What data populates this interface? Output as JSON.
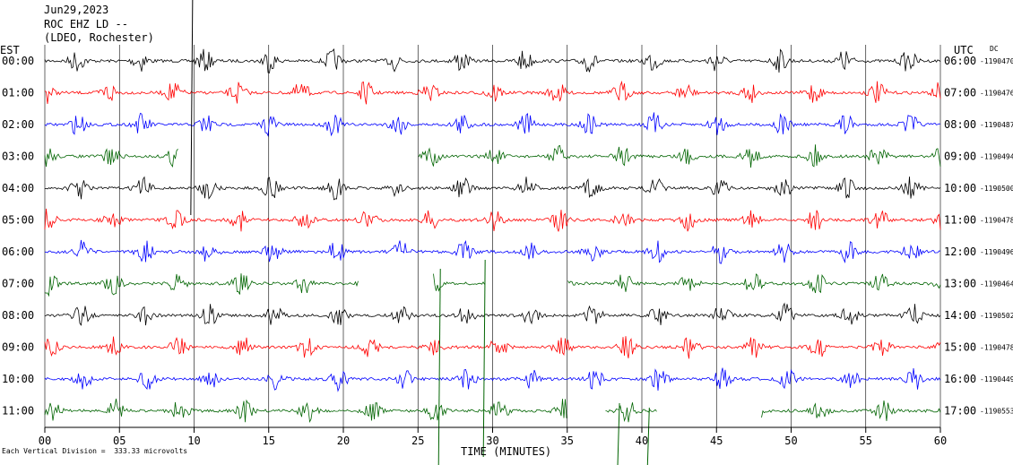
{
  "header": {
    "date": "Jun29,2023",
    "station": "ROC EHZ LD --",
    "network": "(LDEO, Rochester)"
  },
  "left_zone": "EST",
  "right_zone": "UTC",
  "dc_label": "DC",
  "footer_text": "Each Vertical Division =  333.33 microvolts",
  "colors": {
    "black": "#000000",
    "red": "#ff0000",
    "blue": "#0000ff",
    "green": "#006400"
  },
  "chart_data": {
    "type": "line",
    "title": "",
    "xlabel": "TIME (MINUTES)",
    "xlim": [
      0,
      60
    ],
    "x_ticks": [
      "00",
      "05",
      "10",
      "15",
      "20",
      "25",
      "30",
      "35",
      "40",
      "45",
      "50",
      "55",
      "60"
    ],
    "grid": "vertical lines every 5 minutes",
    "series": [
      {
        "est": "00:00",
        "utc": "06:00",
        "dc": "-1190470",
        "color": "black",
        "gaps": []
      },
      {
        "est": "01:00",
        "utc": "07:00",
        "dc": "-1190476",
        "color": "red",
        "gaps": []
      },
      {
        "est": "02:00",
        "utc": "08:00",
        "dc": "-1190487",
        "color": "blue",
        "gaps": []
      },
      {
        "est": "03:00",
        "utc": "09:00",
        "dc": "-1190494",
        "color": "green",
        "gaps": [
          [
            9,
            25
          ]
        ]
      },
      {
        "est": "04:00",
        "utc": "10:00",
        "dc": "-1190500",
        "color": "black",
        "gaps": []
      },
      {
        "est": "05:00",
        "utc": "11:00",
        "dc": "-1190478",
        "color": "red",
        "gaps": []
      },
      {
        "est": "06:00",
        "utc": "12:00",
        "dc": "-1190496",
        "color": "blue",
        "gaps": []
      },
      {
        "est": "07:00",
        "utc": "13:00",
        "dc": "-1190464",
        "color": "green",
        "gaps": [
          [
            21,
            26
          ],
          [
            29.5,
            35
          ]
        ]
      },
      {
        "est": "08:00",
        "utc": "14:00",
        "dc": "-1190502",
        "color": "black",
        "gaps": []
      },
      {
        "est": "09:00",
        "utc": "15:00",
        "dc": "-1190478",
        "color": "red",
        "gaps": []
      },
      {
        "est": "10:00",
        "utc": "16:00",
        "dc": "-1190449",
        "color": "blue",
        "gaps": []
      },
      {
        "est": "11:00",
        "utc": "17:00",
        "dc": "-1190553",
        "color": "green",
        "gaps": [
          [
            35,
            37.5
          ],
          [
            41,
            48
          ]
        ]
      }
    ]
  }
}
